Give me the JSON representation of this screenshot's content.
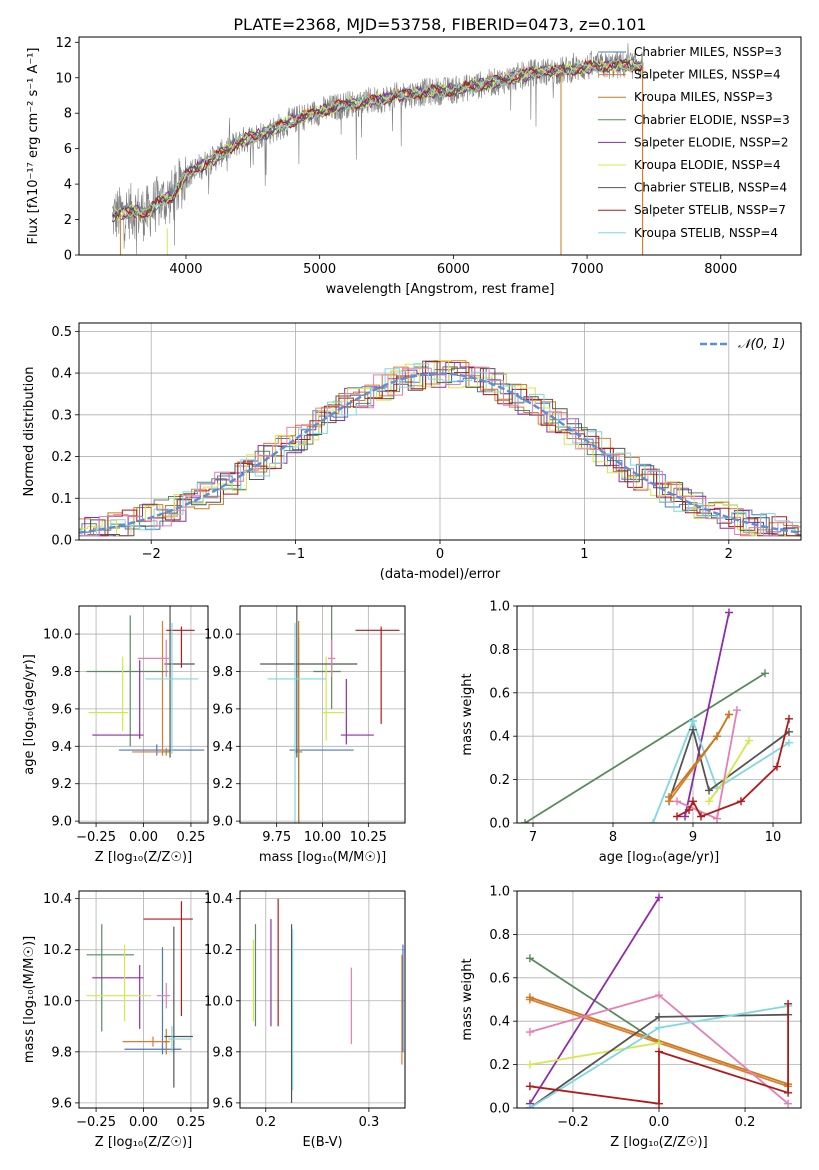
{
  "figure_title": "PLATE=2368, MJD=53758, FIBERID=0473, z=0.101",
  "colors": {
    "Chabrier MILES": "#4a78c8",
    "Salpeter MILES": "#e07b2e",
    "Kroupa MILES": "#c87a1e",
    "Chabrier ELODIE": "#5a8a5e",
    "Salpeter ELODIE": "#8f2ca8",
    "Kroupa ELODIE": "#d4e84a",
    "Chabrier STELIB": "#555555",
    "Salpeter STELIB": "#b01a1a",
    "Kroupa STELIB": "#7fd8e0",
    "extra_pink": "#e67fb4",
    "data": "#808080",
    "gauss": "#5a8fd6"
  },
  "chart_data": [
    {
      "id": "spectrum",
      "type": "line",
      "xlabel": "wavelength [Angstrom, rest frame]",
      "ylabel": "Flux [fλ10⁻¹⁷ erg cm⁻² s⁻¹ A⁻¹]",
      "xlim": [
        3200,
        8600
      ],
      "ylim": [
        0,
        12.3
      ],
      "xticks": [
        4000,
        5000,
        6000,
        7000,
        8000
      ],
      "yticks": [
        0,
        2,
        4,
        6,
        8,
        10,
        12
      ],
      "grid": false,
      "legend_position": "right",
      "legend": [
        {
          "label": "Chabrier MILES, NSSP=3",
          "color_key": "Chabrier MILES"
        },
        {
          "label": "Salpeter MILES, NSSP=4",
          "color_key": "Salpeter MILES"
        },
        {
          "label": "Kroupa MILES, NSSP=3",
          "color_key": "Kroupa MILES"
        },
        {
          "label": "Chabrier ELODIE, NSSP=3",
          "color_key": "Chabrier ELODIE"
        },
        {
          "label": "Salpeter ELODIE, NSSP=2",
          "color_key": "Salpeter ELODIE"
        },
        {
          "label": "Kroupa ELODIE, NSSP=4",
          "color_key": "Kroupa ELODIE"
        },
        {
          "label": "Chabrier STELIB, NSSP=4",
          "color_key": "Chabrier STELIB"
        },
        {
          "label": "Salpeter STELIB, NSSP=7",
          "color_key": "Salpeter STELIB"
        },
        {
          "label": "Kroupa STELIB, NSSP=4",
          "color_key": "Kroupa STELIB"
        }
      ],
      "continuum": [
        [
          3450,
          2.2
        ],
        [
          3600,
          2.5
        ],
        [
          3700,
          2.3
        ],
        [
          3800,
          3.0
        ],
        [
          3900,
          3.3
        ],
        [
          4000,
          4.5
        ],
        [
          4200,
          5.4
        ],
        [
          4400,
          6.4
        ],
        [
          4600,
          6.9
        ],
        [
          4800,
          7.6
        ],
        [
          5000,
          8.1
        ],
        [
          5200,
          8.5
        ],
        [
          5400,
          8.7
        ],
        [
          5600,
          9.0
        ],
        [
          5800,
          9.2
        ],
        [
          6000,
          9.3
        ],
        [
          6200,
          9.6
        ],
        [
          6400,
          9.9
        ],
        [
          6600,
          10.3
        ],
        [
          6800,
          10.4
        ],
        [
          7000,
          10.6
        ],
        [
          7200,
          10.7
        ],
        [
          7400,
          10.7
        ]
      ]
    },
    {
      "id": "residual-hist",
      "type": "area",
      "xlabel": "(data-model)/error",
      "ylabel": "Normed distribution",
      "xlim": [
        -2.5,
        2.5
      ],
      "ylim": [
        0,
        0.52
      ],
      "xticks": [
        -2,
        -1,
        0,
        1,
        2
      ],
      "yticks": [
        0.0,
        0.1,
        0.2,
        0.3,
        0.4,
        0.5
      ],
      "grid": true,
      "legend_position": "top-right",
      "legend": [
        {
          "label": "𝒩(0, 1)",
          "color_key": "gauss"
        }
      ],
      "bin_width": 0.1
    },
    {
      "id": "age-vs-Z",
      "type": "scatter",
      "xlabel": "Z [log₁₀(Z/Z☉)]",
      "ylabel": "age  [log₁₀(age/yr)]",
      "xlim": [
        -0.34,
        0.34
      ],
      "ylim": [
        8.99,
        10.15
      ],
      "xticks": [
        -0.25,
        0.0,
        0.25
      ],
      "xticklabels": [
        "−0.25",
        "0.00",
        "0.25"
      ],
      "yticks": [
        9.0,
        9.2,
        9.4,
        9.6,
        9.8,
        10.0
      ],
      "grid": true,
      "errorbars": [
        {
          "color_key": "Chabrier MILES",
          "x": 0.07,
          "y": 9.38,
          "xerr": [
            0.2,
            0.25
          ],
          "yerr": [
            0.03,
            0.03
          ]
        },
        {
          "color_key": "Salpeter MILES",
          "x": 0.1,
          "y": 9.37,
          "xerr": [
            0.16,
            0.04
          ],
          "yerr": [
            0.02,
            0.7
          ]
        },
        {
          "color_key": "Kroupa MILES",
          "x": 0.12,
          "y": 9.37,
          "xerr": [
            0.02,
            0.02
          ],
          "yerr": [
            0.02,
            0.02
          ]
        },
        {
          "color_key": "Chabrier ELODIE",
          "x": -0.07,
          "y": 9.8,
          "xerr": [
            0.23,
            0.2
          ],
          "yerr": [
            0.4,
            0.3
          ]
        },
        {
          "color_key": "Salpeter ELODIE",
          "x": -0.02,
          "y": 9.46,
          "xerr": [
            0.25,
            0.02
          ],
          "yerr": [
            0.02,
            0.4
          ]
        },
        {
          "color_key": "Kroupa ELODIE",
          "x": -0.11,
          "y": 9.58,
          "xerr": [
            0.18,
            0.03
          ],
          "yerr": [
            0.1,
            0.3
          ]
        },
        {
          "color_key": "Chabrier STELIB",
          "x": 0.14,
          "y": 9.84,
          "xerr": [
            0.03,
            0.13
          ],
          "yerr": [
            0.5,
            0.6
          ]
        },
        {
          "color_key": "Salpeter STELIB",
          "x": 0.2,
          "y": 10.02,
          "xerr": [
            0.08,
            0.07
          ],
          "yerr": [
            0.2,
            0.02
          ]
        },
        {
          "color_key": "Kroupa STELIB",
          "x": 0.15,
          "y": 9.76,
          "xerr": [
            0.14,
            0.14
          ],
          "yerr": [
            0.4,
            0.3
          ]
        },
        {
          "color_key": "extra_pink",
          "x": 0.12,
          "y": 9.87,
          "xerr": [
            0.15,
            0.02
          ],
          "yerr": [
            0.1,
            0.1
          ]
        }
      ]
    },
    {
      "id": "age-vs-mass",
      "type": "scatter",
      "xlabel": "mass [log₁₀(M/M☉)]",
      "ylabel": "",
      "xlim": [
        9.55,
        10.45
      ],
      "ylim": [
        8.99,
        10.15
      ],
      "xticks": [
        9.75,
        10.0,
        10.25
      ],
      "xticklabels": [
        "9.75",
        "10.00",
        "10.25"
      ],
      "yticks": [
        9.0,
        9.2,
        9.4,
        9.6,
        9.8,
        10.0
      ],
      "grid": true,
      "errorbars": [
        {
          "color_key": "Chabrier MILES",
          "x": 9.87,
          "y": 9.38,
          "xerr": [
            0.05,
            0.3
          ],
          "yerr": [
            0.5,
            0.6
          ]
        },
        {
          "color_key": "Kroupa MILES",
          "x": 9.87,
          "y": 9.37,
          "xerr": [
            0.02,
            0.02
          ],
          "yerr": [
            0.6,
            0.7
          ]
        },
        {
          "color_key": "Chabrier ELODIE",
          "x": 10.05,
          "y": 9.8,
          "xerr": [
            0.1,
            0.05
          ],
          "yerr": [
            0.2,
            0.4
          ]
        },
        {
          "color_key": "Salpeter ELODIE",
          "x": 10.13,
          "y": 9.46,
          "xerr": [
            0.03,
            0.15
          ],
          "yerr": [
            0.05,
            0.3
          ]
        },
        {
          "color_key": "Kroupa ELODIE",
          "x": 10.02,
          "y": 9.58,
          "xerr": [
            0.02,
            0.1
          ],
          "yerr": [
            0.15,
            0.3
          ]
        },
        {
          "color_key": "Chabrier STELIB",
          "x": 9.86,
          "y": 9.84,
          "xerr": [
            0.2,
            0.33
          ],
          "yerr": [
            0.5,
            0.4
          ]
        },
        {
          "color_key": "Salpeter STELIB",
          "x": 10.32,
          "y": 10.02,
          "xerr": [
            0.14,
            0.1
          ],
          "yerr": [
            0.5,
            0.02
          ]
        },
        {
          "color_key": "Kroupa STELIB",
          "x": 9.85,
          "y": 9.76,
          "xerr": [
            0.15,
            0.17
          ],
          "yerr": [
            0.8,
            0.3
          ]
        },
        {
          "color_key": "extra_pink",
          "x": 10.05,
          "y": 9.87,
          "xerr": [
            0.02,
            0.02
          ],
          "yerr": [
            0.1,
            0.1
          ]
        }
      ]
    },
    {
      "id": "weight-vs-age",
      "type": "line",
      "xlabel": "age  [log₁₀(age/yr)]",
      "ylabel": "mass weight",
      "xlim": [
        6.8,
        10.35
      ],
      "ylim": [
        0,
        1.0
      ],
      "xticks": [
        7,
        8,
        9,
        10
      ],
      "yticks": [
        0.0,
        0.2,
        0.4,
        0.6,
        0.8,
        1.0
      ],
      "grid": true,
      "series": [
        {
          "color_key": "Chabrier ELODIE",
          "x": [
            6.9,
            9.9
          ],
          "y": [
            0.0,
            0.69
          ]
        },
        {
          "color_key": "Salpeter ELODIE",
          "x": [
            8.9,
            9.45
          ],
          "y": [
            0.03,
            0.97
          ]
        },
        {
          "color_key": "Kroupa STELIB",
          "x": [
            8.5,
            9.0,
            9.3,
            10.2
          ],
          "y": [
            0.0,
            0.47,
            0.16,
            0.37
          ]
        },
        {
          "color_key": "Chabrier STELIB",
          "x": [
            8.7,
            9.0,
            9.2,
            10.2
          ],
          "y": [
            0.1,
            0.43,
            0.15,
            0.42
          ]
        },
        {
          "color_key": "Salpeter MILES",
          "x": [
            8.7,
            9.3,
            9.45
          ],
          "y": [
            0.1,
            0.4,
            0.5
          ]
        },
        {
          "color_key": "Kroupa MILES",
          "x": [
            8.7,
            9.3,
            9.45
          ],
          "y": [
            0.12,
            0.4,
            0.5
          ]
        },
        {
          "color_key": "Kroupa ELODIE",
          "x": [
            9.2,
            9.4,
            9.7
          ],
          "y": [
            0.1,
            0.2,
            0.38
          ]
        },
        {
          "color_key": "extra_pink",
          "x": [
            8.8,
            9.3,
            9.55
          ],
          "y": [
            0.1,
            0.02,
            0.52
          ]
        },
        {
          "color_key": "Salpeter STELIB",
          "x": [
            8.8,
            8.95,
            9.0,
            9.1,
            9.6,
            10.05,
            10.2
          ],
          "y": [
            0.03,
            0.06,
            0.1,
            0.03,
            0.1,
            0.26,
            0.48
          ]
        }
      ]
    },
    {
      "id": "mass-vs-Z",
      "type": "scatter",
      "xlabel": "Z [log₁₀(Z/Z☉)]",
      "ylabel": "mass [log₁₀(M/M☉)]",
      "xlim": [
        -0.34,
        0.34
      ],
      "ylim": [
        9.58,
        10.43
      ],
      "xticks": [
        -0.25,
        0.0,
        0.25
      ],
      "xticklabels": [
        "−0.25",
        "0.00",
        "0.25"
      ],
      "yticks": [
        9.6,
        9.8,
        10.0,
        10.2,
        10.4
      ],
      "grid": true,
      "errorbars": [
        {
          "color_key": "Chabrier MILES",
          "x": 0.1,
          "y": 9.81,
          "xerr": [
            0.2,
            0.1
          ],
          "yerr": [
            0.02,
            0.4
          ]
        },
        {
          "color_key": "Salpeter MILES",
          "x": 0.05,
          "y": 9.84,
          "xerr": [
            0.16,
            0.08
          ],
          "yerr": [
            0.02,
            0.02
          ]
        },
        {
          "color_key": "Kroupa MILES",
          "x": 0.12,
          "y": 9.84,
          "xerr": [
            0.02,
            0.02
          ],
          "yerr": [
            0.05,
            0.05
          ]
        },
        {
          "color_key": "Chabrier ELODIE",
          "x": -0.22,
          "y": 10.18,
          "xerr": [
            0.08,
            0.17
          ],
          "yerr": [
            0.3,
            0.12
          ]
        },
        {
          "color_key": "Salpeter ELODIE",
          "x": -0.02,
          "y": 10.09,
          "xerr": [
            0.25,
            0.02
          ],
          "yerr": [
            0.2,
            0.05
          ]
        },
        {
          "color_key": "Kroupa ELODIE",
          "x": -0.1,
          "y": 10.02,
          "xerr": [
            0.2,
            0.14
          ],
          "yerr": [
            0.1,
            0.2
          ]
        },
        {
          "color_key": "Chabrier STELIB",
          "x": 0.16,
          "y": 9.86,
          "xerr": [
            0.05,
            0.1
          ],
          "yerr": [
            0.2,
            0.43
          ]
        },
        {
          "color_key": "Salpeter STELIB",
          "x": 0.2,
          "y": 10.32,
          "xerr": [
            0.2,
            0.06
          ],
          "yerr": [
            0.38,
            0.07
          ]
        },
        {
          "color_key": "Kroupa STELIB",
          "x": 0.15,
          "y": 9.85,
          "xerr": [
            0.02,
            0.1
          ],
          "yerr": [
            0.05,
            0.05
          ]
        },
        {
          "color_key": "extra_pink",
          "x": 0.12,
          "y": 10.02,
          "xerr": [
            0.05,
            0.02
          ],
          "yerr": [
            0.05,
            0.05
          ]
        }
      ]
    },
    {
      "id": "mass-vs-ebv",
      "type": "scatter",
      "xlabel": "E(B-V)",
      "ylabel": "",
      "xlim": [
        0.175,
        0.335
      ],
      "ylim": [
        9.58,
        10.43
      ],
      "xticks": [
        0.2,
        0.3
      ],
      "xticklabels": [
        "0.2",
        "0.3"
      ],
      "yticks": [
        9.6,
        9.8,
        10.0,
        10.2,
        10.4
      ],
      "grid": true,
      "errorbars": [
        {
          "color_key": "Kroupa ELODIE",
          "x": 0.188,
          "y": 10.02,
          "xerr": [
            0,
            0
          ],
          "yerr": [
            0.1,
            0.22
          ]
        },
        {
          "color_key": "Chabrier ELODIE",
          "x": 0.19,
          "y": 10.1,
          "xerr": [
            0,
            0
          ],
          "yerr": [
            0.2,
            0.2
          ]
        },
        {
          "color_key": "Salpeter ELODIE",
          "x": 0.205,
          "y": 10.1,
          "xerr": [
            0,
            0
          ],
          "yerr": [
            0.2,
            0.22
          ]
        },
        {
          "color_key": "Salpeter STELIB",
          "x": 0.212,
          "y": 10.05,
          "xerr": [
            0,
            0
          ],
          "yerr": [
            0.15,
            0.35
          ]
        },
        {
          "color_key": "Chabrier STELIB",
          "x": 0.225,
          "y": 9.95,
          "xerr": [
            0,
            0
          ],
          "yerr": [
            0.35,
            0.35
          ]
        },
        {
          "color_key": "Kroupa STELIB",
          "x": 0.226,
          "y": 9.85,
          "xerr": [
            0,
            0
          ],
          "yerr": [
            0.2,
            0.43
          ]
        },
        {
          "color_key": "extra_pink",
          "x": 0.283,
          "y": 9.98,
          "xerr": [
            0,
            0
          ],
          "yerr": [
            0.15,
            0.15
          ]
        },
        {
          "color_key": "Salpeter MILES",
          "x": 0.332,
          "y": 9.95,
          "xerr": [
            0,
            0
          ],
          "yerr": [
            0.2,
            0.23
          ]
        },
        {
          "color_key": "Chabrier MILES",
          "x": 0.333,
          "y": 10.0,
          "xerr": [
            0,
            0
          ],
          "yerr": [
            0.2,
            0.22
          ]
        }
      ]
    },
    {
      "id": "weight-vs-Z",
      "type": "line",
      "xlabel": "Z [log₁₀(Z/Z☉)]",
      "ylabel": "mass weight",
      "xlim": [
        -0.33,
        0.33
      ],
      "ylim": [
        0,
        1.0
      ],
      "xticks": [
        -0.2,
        0.0,
        0.2
      ],
      "xticklabels": [
        "−0.2",
        "0.0",
        "0.2"
      ],
      "yticks": [
        0.0,
        0.2,
        0.4,
        0.6,
        0.8,
        1.0
      ],
      "grid": true,
      "series": [
        {
          "color_key": "Chabrier ELODIE",
          "x": [
            -0.3,
            0.0
          ],
          "y": [
            0.69,
            0.3
          ]
        },
        {
          "color_key": "Salpeter ELODIE",
          "x": [
            -0.3,
            0.0
          ],
          "y": [
            0.02,
            0.97
          ]
        },
        {
          "color_key": "Salpeter MILES",
          "x": [
            -0.3,
            0.3
          ],
          "y": [
            0.5,
            0.1
          ]
        },
        {
          "color_key": "Kroupa MILES",
          "x": [
            -0.3,
            0.3
          ],
          "y": [
            0.51,
            0.11
          ]
        },
        {
          "color_key": "extra_pink",
          "x": [
            -0.3,
            0.0,
            0.3
          ],
          "y": [
            0.35,
            0.52,
            0.02
          ]
        },
        {
          "color_key": "Kroupa ELODIE",
          "x": [
            -0.3,
            0.0
          ],
          "y": [
            0.2,
            0.3
          ]
        },
        {
          "color_key": "Chabrier STELIB",
          "x": [
            -0.3,
            0.0,
            0.3
          ],
          "y": [
            0.0,
            0.42,
            0.43
          ]
        },
        {
          "color_key": "Kroupa STELIB",
          "x": [
            -0.3,
            0.0,
            0.3
          ],
          "y": [
            0.0,
            0.37,
            0.47
          ]
        },
        {
          "color_key": "Salpeter STELIB",
          "x": [
            -0.3,
            0.0,
            0.0,
            0.3,
            0.3
          ],
          "y": [
            0.1,
            0.02,
            0.26,
            0.07,
            0.48
          ]
        }
      ]
    }
  ]
}
